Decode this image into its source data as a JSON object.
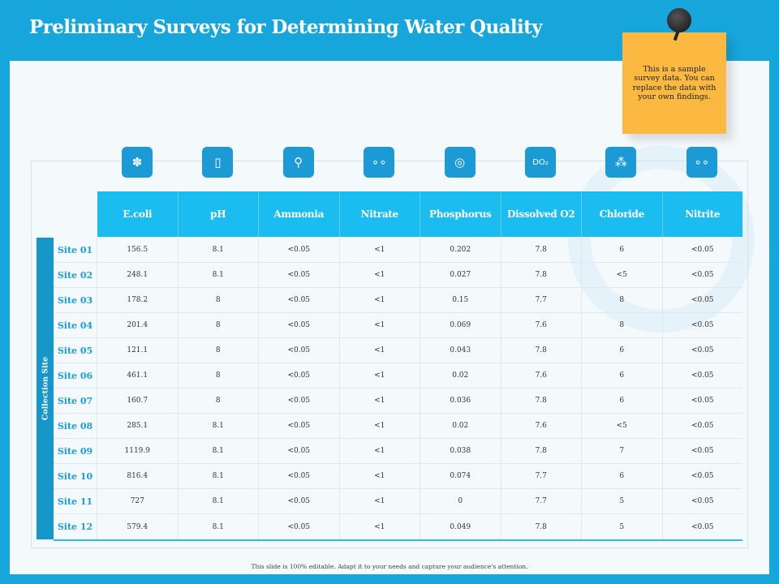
{
  "title": "Preliminary Surveys for Determining Water Quality",
  "note": "This is a sample survey data. You can replace the data with your own findings.",
  "side_label": "Collection Site",
  "columns": [
    {
      "label": "E.coli",
      "icon": "bacteria-icon",
      "glyph": "✽"
    },
    {
      "label": "pH",
      "icon": "ph-meter-icon",
      "glyph": "▯"
    },
    {
      "label": "Ammonia",
      "icon": "ammonia-molecule-icon",
      "glyph": "⚲"
    },
    {
      "label": "Nitrate",
      "icon": "nitrate-molecule-icon",
      "glyph": "∘∘"
    },
    {
      "label": "Phosphorus",
      "icon": "phosphorus-atom-icon",
      "glyph": "◎"
    },
    {
      "label": "Dissolved O2",
      "icon": "do2-icon",
      "glyph": "DO₂"
    },
    {
      "label": "Chloride",
      "icon": "chloride-molecule-icon",
      "glyph": "⁂"
    },
    {
      "label": "Nitrite",
      "icon": "nitrite-molecule-icon",
      "glyph": "∘∘"
    }
  ],
  "rows": [
    {
      "site": "Site 01",
      "values": [
        "156.5",
        "8.1",
        "<0.05",
        "<1",
        "0.202",
        "7.8",
        "6",
        "<0.05"
      ]
    },
    {
      "site": "Site 02",
      "values": [
        "248.1",
        "8.1",
        "<0.05",
        "<1",
        "0.027",
        "7.8",
        "<5",
        "<0.05"
      ]
    },
    {
      "site": "Site 03",
      "values": [
        "178.2",
        "8",
        "<0.05",
        "<1",
        "0.15",
        "7.7",
        "8",
        "<0.05"
      ]
    },
    {
      "site": "Site 04",
      "values": [
        "201.4",
        "8",
        "<0.05",
        "<1",
        "0.069",
        "7.6",
        "8",
        "<0.05"
      ]
    },
    {
      "site": "Site 05",
      "values": [
        "121.1",
        "8",
        "<0.05",
        "<1",
        "0.043",
        "7.8",
        "6",
        "<0.05"
      ]
    },
    {
      "site": "Site 06",
      "values": [
        "461.1",
        "8",
        "<0.05",
        "<1",
        "0.02",
        "7.6",
        "6",
        "<0.05"
      ]
    },
    {
      "site": "Site 07",
      "values": [
        "160.7",
        "8",
        "<0.05",
        "<1",
        "0.036",
        "7.8",
        "6",
        "<0.05"
      ]
    },
    {
      "site": "Site 08",
      "values": [
        "285.1",
        "8.1",
        "<0.05",
        "<1",
        "0.02",
        "7.6",
        "<5",
        "<0.05"
      ]
    },
    {
      "site": "Site 09",
      "values": [
        "1119.9",
        "8.1",
        "<0.05",
        "<1",
        "0.038",
        "7.8",
        "7",
        "<0.05"
      ]
    },
    {
      "site": "Site 10",
      "values": [
        "816.4",
        "8.1",
        "<0.05",
        "<1",
        "0.074",
        "7.7",
        "6",
        "<0.05"
      ]
    },
    {
      "site": "Site 11",
      "values": [
        "727",
        "8.1",
        "<0.05",
        "<1",
        "0",
        "7.7",
        "5",
        "<0.05"
      ]
    },
    {
      "site": "Site 12",
      "values": [
        "579.4",
        "8.1",
        "<0.05",
        "<1",
        "0.049",
        "7.8",
        "5",
        "<0.05"
      ]
    }
  ],
  "footer": "This slide is 100% editable. Adapt it to your needs and capture your audience's attention."
}
